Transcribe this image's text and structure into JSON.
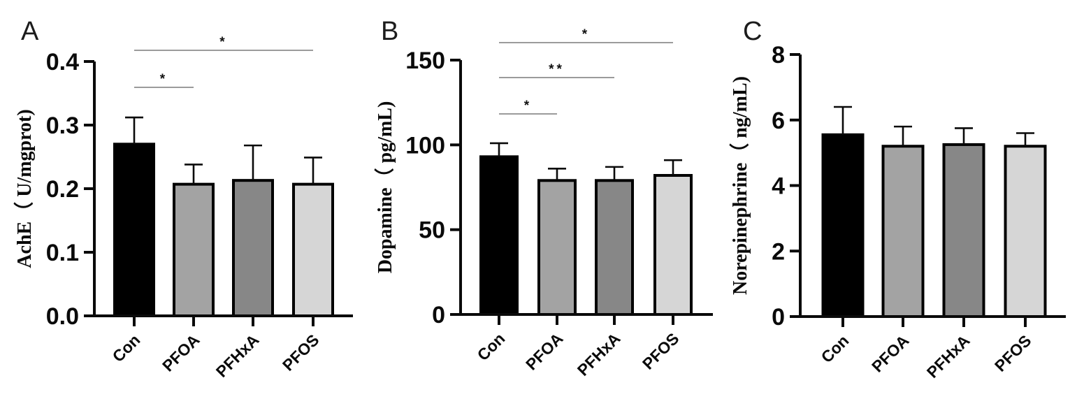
{
  "figure": {
    "background": "#ffffff",
    "bar_outline_color": "#000000",
    "sig_line_color": "#7a7a7a",
    "axis_color": "#0a0a0a"
  },
  "chart_data": [
    {
      "type": "bar",
      "panel_label": "A",
      "ylabel": "AchE（ U/mgprot)",
      "xlabel": "",
      "categories": [
        "Con",
        "PFOA",
        "PFHxA",
        "PFOS"
      ],
      "values": [
        0.27,
        0.207,
        0.213,
        0.207
      ],
      "errors_plus": [
        0.042,
        0.031,
        0.055,
        0.042
      ],
      "ylim": [
        0,
        0.4
      ],
      "yticks": [
        0,
        0.1,
        0.2,
        0.3,
        0.4
      ],
      "ytick_labels": [
        "0.0",
        "0.1",
        "0.2",
        "0.3",
        "0.4"
      ],
      "grid": "off",
      "legend": "none",
      "bar_colors": [
        "#000000",
        "#a3a3a3",
        "#878787",
        "#d6d6d6"
      ],
      "significance": [
        {
          "from": "Con",
          "to": "PFOA",
          "label": "*"
        },
        {
          "from": "Con",
          "to": "PFOS",
          "label": "*"
        }
      ]
    },
    {
      "type": "bar",
      "panel_label": "B",
      "ylabel": "Dopamine（ pg/mL)",
      "xlabel": "",
      "categories": [
        "Con",
        "PFOA",
        "PFHxA",
        "PFOS"
      ],
      "values": [
        93,
        79,
        79,
        82
      ],
      "errors_plus": [
        8,
        7,
        8,
        9
      ],
      "ylim": [
        0,
        150
      ],
      "yticks": [
        0,
        50,
        100,
        150
      ],
      "ytick_labels": [
        "0",
        "50",
        "100",
        "150"
      ],
      "grid": "off",
      "legend": "none",
      "bar_colors": [
        "#000000",
        "#a3a3a3",
        "#878787",
        "#d6d6d6"
      ],
      "significance": [
        {
          "from": "Con",
          "to": "PFOA",
          "label": "*"
        },
        {
          "from": "Con",
          "to": "PFHxA",
          "label": "**"
        },
        {
          "from": "Con",
          "to": "PFOS",
          "label": "*"
        }
      ]
    },
    {
      "type": "bar",
      "panel_label": "C",
      "ylabel": "Norepinephrine（ ng/mL)",
      "xlabel": "",
      "categories": [
        "Con",
        "PFOA",
        "PFHxA",
        "PFOS"
      ],
      "values": [
        5.55,
        5.2,
        5.25,
        5.2
      ],
      "errors_plus": [
        0.85,
        0.6,
        0.5,
        0.4
      ],
      "ylim": [
        0,
        8
      ],
      "yticks": [
        0,
        2,
        4,
        6,
        8
      ],
      "ytick_labels": [
        "0",
        "2",
        "4",
        "6",
        "8"
      ],
      "grid": "off",
      "legend": "none",
      "bar_colors": [
        "#000000",
        "#a3a3a3",
        "#878787",
        "#d6d6d6"
      ],
      "significance": []
    }
  ]
}
